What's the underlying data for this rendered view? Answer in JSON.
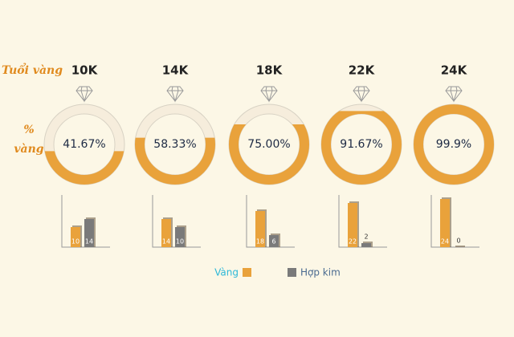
{
  "chart_data": [
    {
      "type": "ring",
      "row_label": "Tuổi vàng",
      "value_label_title": "% vàng",
      "categories": [
        "10K",
        "14K",
        "18K",
        "22K",
        "24K"
      ],
      "values": [
        41.67,
        58.33,
        75.0,
        91.67,
        99.9
      ],
      "value_labels": [
        "41.67%",
        "58.33%",
        "75.00%",
        "91.67%",
        "99.9%"
      ],
      "ylim": [
        0,
        100
      ],
      "color": "#e9a23b"
    },
    {
      "type": "bar",
      "ylim": [
        0,
        26
      ],
      "series": [
        {
          "name": "Vàng",
          "color": "#e9a23b",
          "values": [
            10,
            14,
            18,
            22,
            24
          ]
        },
        {
          "name": "Hợp kim",
          "color": "#7a7a7a",
          "values": [
            14,
            10,
            6,
            2,
            0
          ]
        }
      ]
    }
  ]
}
